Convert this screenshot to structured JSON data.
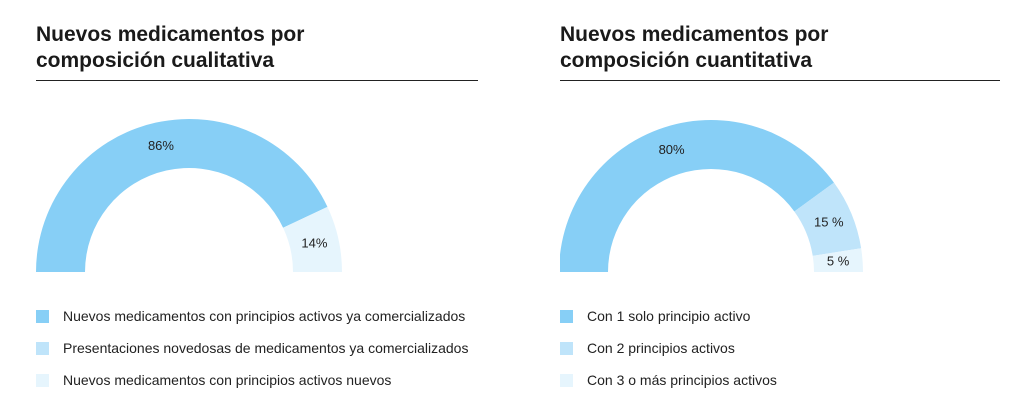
{
  "chart_data": [
    {
      "type": "pie",
      "variant": "half-donut",
      "title": "Nuevos medicamentos por\ncomposición cualitativa",
      "categories": [
        "Nuevos medicamentos con principios activos ya comercializados",
        "Presentaciones novedosas de medicamentos ya comercializados",
        "Nuevos medicamentos con principios activos nuevos"
      ],
      "values": [
        86,
        0,
        14
      ],
      "data_labels": [
        "86%",
        "",
        "14%"
      ],
      "colors": [
        "#87cff6",
        "#bfe4fa",
        "#e6f5fd"
      ],
      "legend_position": "bottom"
    },
    {
      "type": "pie",
      "variant": "half-donut",
      "title": "Nuevos medicamentos por\ncomposición cuantitativa",
      "categories": [
        "Con 1 solo principio activo",
        "Con 2 principios activos",
        "Con 3 o más principios activos"
      ],
      "values": [
        80,
        15,
        5
      ],
      "data_labels": [
        "80%",
        "15 %",
        "5 %"
      ],
      "colors": [
        "#87cff6",
        "#bfe4fa",
        "#e6f5fd"
      ],
      "legend_position": "bottom"
    }
  ]
}
